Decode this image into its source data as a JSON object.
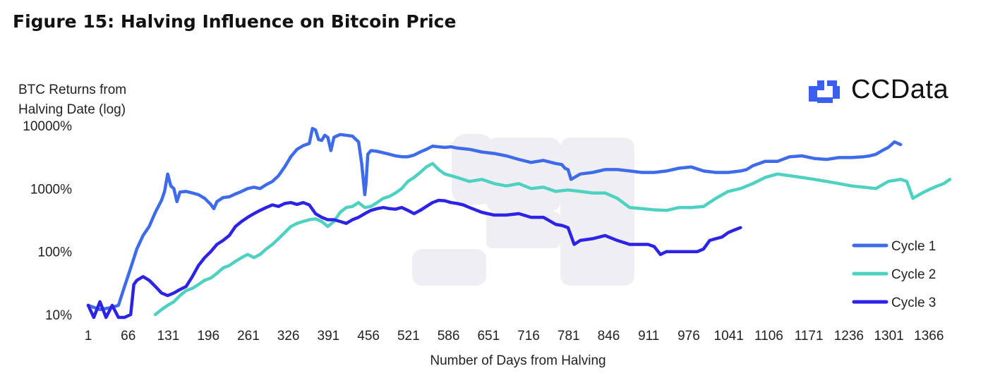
{
  "title": "Figure 15: Halving Influence on Bitcoin Price",
  "logo": {
    "text": "CCData",
    "icon": "ccdata-logo-icon",
    "color": "#3a5ef0"
  },
  "chart_data": {
    "type": "line",
    "title": "Figure 15: Halving Influence on Bitcoin Price",
    "ylabel_lines": [
      "BTC Returns from",
      "Halving Date (log)"
    ],
    "xlabel": "Number of Days from Halving",
    "yscale": "log",
    "ylim": [
      10,
      10000
    ],
    "xlim": [
      1,
      1400
    ],
    "y_ticks": [
      {
        "value": 10,
        "label": "10%"
      },
      {
        "value": 100,
        "label": "100%"
      },
      {
        "value": 1000,
        "label": "1000%"
      },
      {
        "value": 10000,
        "label": "10000%"
      }
    ],
    "x_ticks": [
      1,
      66,
      131,
      196,
      261,
      326,
      391,
      456,
      521,
      586,
      651,
      716,
      781,
      846,
      911,
      976,
      1041,
      1106,
      1171,
      1236,
      1301,
      1366
    ],
    "grid": false,
    "legend_position": "right",
    "series": [
      {
        "name": "Cycle 1",
        "color": "#3d6bea",
        "x": [
          1,
          20,
          40,
          50,
          60,
          70,
          80,
          90,
          100,
          110,
          120,
          125,
          130,
          135,
          140,
          145,
          150,
          160,
          170,
          180,
          190,
          200,
          205,
          210,
          220,
          230,
          240,
          250,
          260,
          270,
          280,
          290,
          300,
          310,
          320,
          330,
          340,
          350,
          360,
          365,
          370,
          375,
          380,
          385,
          390,
          395,
          400,
          410,
          420,
          430,
          440,
          445,
          450,
          452,
          455,
          460,
          470,
          480,
          490,
          500,
          510,
          520,
          530,
          540,
          550,
          560,
          570,
          580,
          590,
          600,
          620,
          640,
          660,
          680,
          700,
          720,
          740,
          760,
          770,
          775,
          780,
          785,
          800,
          820,
          840,
          860,
          880,
          900,
          920,
          940,
          960,
          980,
          1000,
          1020,
          1040,
          1060,
          1070,
          1080,
          1100,
          1120,
          1140,
          1160,
          1180,
          1200,
          1220,
          1240,
          1260,
          1270,
          1280,
          1290,
          1300,
          1310,
          1320
        ],
        "values": [
          14,
          12,
          13,
          14,
          28,
          55,
          110,
          180,
          250,
          420,
          650,
          900,
          1700,
          1100,
          1000,
          620,
          880,
          900,
          850,
          800,
          700,
          560,
          480,
          620,
          720,
          740,
          820,
          900,
          1000,
          1050,
          1000,
          1150,
          1300,
          1600,
          2200,
          3200,
          4200,
          4800,
          5200,
          9000,
          8500,
          6000,
          5800,
          7000,
          6500,
          4000,
          6500,
          7200,
          7000,
          6800,
          5500,
          2500,
          800,
          1200,
          3500,
          4000,
          3900,
          3700,
          3500,
          3300,
          3200,
          3200,
          3400,
          3800,
          4200,
          4700,
          4600,
          4500,
          4600,
          4400,
          4200,
          3800,
          3600,
          3300,
          2900,
          2600,
          2800,
          2500,
          2400,
          2100,
          2000,
          1400,
          1700,
          1800,
          2000,
          2000,
          1900,
          1800,
          1800,
          1900,
          2100,
          2200,
          1900,
          1800,
          1800,
          1900,
          2000,
          2300,
          2700,
          2700,
          3200,
          3300,
          3000,
          2900,
          3100,
          3100,
          3200,
          3300,
          3500,
          4000,
          4500,
          5500,
          5000
        ]
      },
      {
        "name": "Cycle 2",
        "color": "#4fd1c1",
        "x": [
          110,
          120,
          130,
          140,
          150,
          160,
          170,
          180,
          190,
          200,
          210,
          220,
          230,
          240,
          250,
          260,
          270,
          280,
          290,
          300,
          310,
          320,
          330,
          340,
          350,
          360,
          370,
          380,
          390,
          400,
          410,
          420,
          430,
          440,
          450,
          460,
          470,
          480,
          490,
          500,
          510,
          520,
          530,
          540,
          550,
          560,
          570,
          580,
          590,
          600,
          620,
          640,
          660,
          680,
          700,
          720,
          740,
          760,
          780,
          800,
          820,
          840,
          860,
          880,
          900,
          920,
          940,
          960,
          980,
          1000,
          1020,
          1040,
          1060,
          1080,
          1100,
          1120,
          1140,
          1160,
          1180,
          1200,
          1220,
          1240,
          1260,
          1280,
          1300,
          1320,
          1330,
          1340,
          1350,
          1360,
          1370,
          1380,
          1390,
          1400
        ],
        "values": [
          10,
          12,
          14,
          16,
          20,
          24,
          26,
          30,
          35,
          38,
          45,
          55,
          60,
          70,
          80,
          90,
          80,
          90,
          110,
          130,
          160,
          200,
          250,
          280,
          300,
          320,
          330,
          300,
          250,
          300,
          420,
          500,
          520,
          600,
          500,
          520,
          600,
          700,
          750,
          850,
          1000,
          1300,
          1500,
          1800,
          2200,
          2500,
          2000,
          1700,
          1600,
          1500,
          1300,
          1400,
          1200,
          1100,
          1200,
          1000,
          1050,
          900,
          950,
          900,
          850,
          850,
          700,
          500,
          480,
          460,
          450,
          500,
          500,
          520,
          700,
          900,
          1000,
          1200,
          1500,
          1700,
          1600,
          1500,
          1400,
          1300,
          1200,
          1100,
          1050,
          1000,
          1300,
          1400,
          1300,
          700,
          800,
          900,
          1000,
          1100,
          1200,
          1400
        ]
      },
      {
        "name": "Cycle 3",
        "color": "#2d23e6",
        "x": [
          1,
          10,
          20,
          30,
          40,
          50,
          60,
          70,
          75,
          80,
          90,
          100,
          110,
          120,
          130,
          140,
          150,
          160,
          170,
          180,
          190,
          200,
          210,
          220,
          230,
          240,
          250,
          260,
          270,
          280,
          290,
          300,
          310,
          320,
          330,
          340,
          350,
          360,
          370,
          380,
          390,
          400,
          410,
          420,
          430,
          440,
          450,
          460,
          470,
          480,
          490,
          500,
          510,
          520,
          530,
          540,
          550,
          560,
          570,
          580,
          590,
          600,
          610,
          620,
          640,
          660,
          680,
          700,
          720,
          740,
          760,
          770,
          780,
          790,
          800,
          820,
          840,
          860,
          880,
          900,
          910,
          920,
          930,
          940,
          960,
          980,
          990,
          1000,
          1010,
          1020,
          1030,
          1040,
          1050,
          1060
        ],
        "values": [
          14,
          8,
          16,
          9,
          14,
          7,
          6,
          10,
          30,
          35,
          40,
          35,
          28,
          22,
          20,
          22,
          25,
          28,
          40,
          60,
          80,
          100,
          130,
          150,
          180,
          250,
          300,
          350,
          400,
          450,
          500,
          550,
          520,
          580,
          600,
          560,
          600,
          550,
          400,
          350,
          320,
          320,
          300,
          280,
          320,
          350,
          400,
          450,
          480,
          500,
          480,
          470,
          500,
          450,
          400,
          450,
          520,
          600,
          650,
          640,
          600,
          580,
          550,
          500,
          420,
          380,
          380,
          400,
          350,
          350,
          270,
          260,
          240,
          130,
          150,
          160,
          180,
          150,
          130,
          130,
          130,
          120,
          90,
          100,
          100,
          100,
          100,
          110,
          150,
          160,
          170,
          200,
          220,
          240
        ]
      }
    ]
  }
}
